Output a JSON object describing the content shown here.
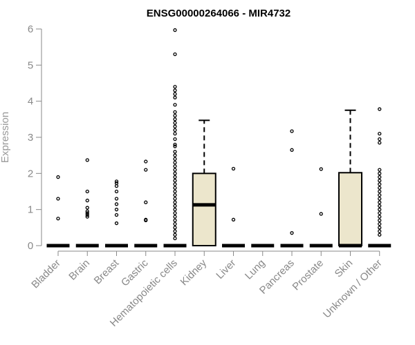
{
  "chart_data": {
    "type": "boxplot",
    "title": "ENSG00000264066 - MIR4732",
    "xlabel": "",
    "ylabel": "Expression",
    "ylim": [
      0,
      6
    ],
    "yticks": [
      "0",
      "1",
      "2",
      "3",
      "4",
      "5",
      "6"
    ],
    "grid": false,
    "colors": {
      "box_fill": "#ece6cc",
      "stroke": "#000000",
      "axis": "#888888"
    },
    "categories": [
      "Bladder",
      "Brain",
      "Breast",
      "Gastric",
      "Hematopoietic cells",
      "Kidney",
      "Liver",
      "Lung",
      "Pancreas",
      "Prostate",
      "Skin",
      "Unknown / Other"
    ],
    "boxes": [
      {
        "q1": 0,
        "median": 0,
        "q3": 0,
        "whisker_low": 0,
        "whisker_high": 0,
        "outliers": [
          0.75,
          1.3,
          1.9
        ]
      },
      {
        "q1": 0,
        "median": 0,
        "q3": 0,
        "whisker_low": 0,
        "whisker_high": 0,
        "outliers": [
          0.8,
          0.85,
          0.9,
          0.95,
          1.05,
          1.25,
          1.5,
          2.37
        ]
      },
      {
        "q1": 0,
        "median": 0,
        "q3": 0,
        "whisker_low": 0,
        "whisker_high": 0,
        "outliers": [
          0.62,
          0.85,
          1.0,
          1.15,
          1.3,
          1.5,
          1.65,
          1.73,
          1.78
        ]
      },
      {
        "q1": 0,
        "median": 0,
        "q3": 0,
        "whisker_low": 0,
        "whisker_high": 0,
        "outliers": [
          0.7,
          0.72,
          1.2,
          2.1,
          2.33
        ]
      },
      {
        "q1": 0,
        "median": 0,
        "q3": 0,
        "whisker_low": 0,
        "whisker_high": 0,
        "outliers": [
          0.2,
          0.3,
          0.4,
          0.5,
          0.6,
          0.7,
          0.8,
          0.9,
          1.0,
          1.1,
          1.2,
          1.3,
          1.4,
          1.5,
          1.6,
          1.7,
          1.8,
          1.9,
          2.0,
          2.1,
          2.2,
          2.3,
          2.4,
          2.5,
          2.6,
          2.75,
          2.8,
          2.95,
          3.1,
          3.2,
          3.3,
          3.4,
          3.5,
          3.6,
          3.7,
          3.9,
          4.1,
          4.2,
          4.3,
          4.4,
          5.3,
          5.97
        ]
      },
      {
        "q1": 0,
        "median": 1.13,
        "q3": 2.0,
        "whisker_low": 0,
        "whisker_high": 3.47,
        "outliers": []
      },
      {
        "q1": 0,
        "median": 0,
        "q3": 0,
        "whisker_low": 0,
        "whisker_high": 0,
        "outliers": [
          0.72,
          2.13
        ]
      },
      {
        "q1": 0,
        "median": 0,
        "q3": 0,
        "whisker_low": 0,
        "whisker_high": 0,
        "outliers": []
      },
      {
        "q1": 0,
        "median": 0,
        "q3": 0,
        "whisker_low": 0,
        "whisker_high": 0,
        "outliers": [
          0.35,
          2.65,
          3.17
        ]
      },
      {
        "q1": 0,
        "median": 0,
        "q3": 0,
        "whisker_low": 0,
        "whisker_high": 0,
        "outliers": [
          0.88,
          2.12
        ]
      },
      {
        "q1": 0,
        "median": 0,
        "q3": 2.02,
        "whisker_low": 0,
        "whisker_high": 3.75,
        "outliers": []
      },
      {
        "q1": 0,
        "median": 0,
        "q3": 0,
        "whisker_low": 0,
        "whisker_high": 0,
        "outliers": [
          0.3,
          0.4,
          0.5,
          0.6,
          0.7,
          0.8,
          0.9,
          1.0,
          1.1,
          1.2,
          1.3,
          1.4,
          1.5,
          1.6,
          1.7,
          1.8,
          1.9,
          2.0,
          2.1,
          2.85,
          2.95,
          3.1,
          3.78
        ]
      }
    ]
  }
}
